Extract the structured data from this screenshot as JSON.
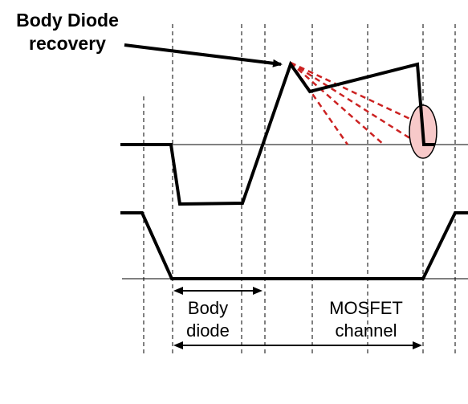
{
  "diagram": {
    "annotation_lines": [
      "Body Diode",
      "recovery"
    ],
    "body_diode_lines": [
      "Body",
      "diode"
    ],
    "mosfet_lines": [
      "MOSFET",
      "channel"
    ],
    "colors": {
      "waveform": "#000000",
      "guide": "#000000",
      "recovery_dash": "#cc2222",
      "highlight_fill": "#f7c9c9",
      "highlight_stroke": "#000000"
    }
  }
}
